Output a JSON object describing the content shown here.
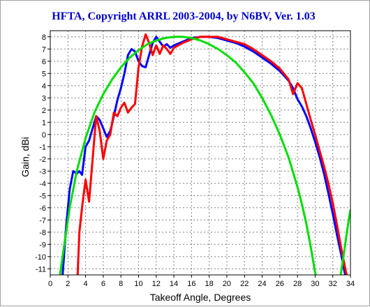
{
  "chart_data": {
    "type": "line",
    "title": "HFTA, Copyright ARRL 2003-2004, by N6BV, Ver. 1.03",
    "xlabel": "Takeoff Angle, Degrees",
    "ylabel": "Gain, dBi",
    "xlim": [
      0,
      34
    ],
    "ylim": [
      -11.5,
      8.5
    ],
    "grid": true,
    "colors": {
      "title": "#0000cc",
      "frame": "#000000",
      "grid": "#808080"
    },
    "x_ticks": [
      "0",
      "2",
      "4",
      "6",
      "8",
      "10",
      "12",
      "14",
      "16",
      "18",
      "20",
      "22",
      "24",
      "26",
      "28",
      "30",
      "32",
      "34"
    ],
    "y_ticks": [
      "8",
      "7",
      "6",
      "5",
      "4",
      "3",
      "2",
      "1",
      "0",
      "-1",
      "-2",
      "-3",
      "-4",
      "-5",
      "-6",
      "-7",
      "-8",
      "-9",
      "-10",
      "-11"
    ],
    "series": [
      {
        "color": "#0000ff",
        "x": [
          1.4,
          1.8,
          2.2,
          2.6,
          3.0,
          3.3,
          3.6,
          4.0,
          4.4,
          4.8,
          5.2,
          5.6,
          6.0,
          6.4,
          6.8,
          7.2,
          7.6,
          8.0,
          8.4,
          8.8,
          9.2,
          9.6,
          10.0,
          10.4,
          10.8,
          11.2,
          11.6,
          12.0,
          12.4,
          12.8,
          13.2,
          13.6,
          14.0,
          15.0,
          16.0,
          17.0,
          18.0,
          19.0,
          20.0,
          21.0,
          22.0,
          23.0,
          24.0,
          25.0,
          26.0,
          27.0,
          27.5,
          28.0,
          28.5,
          29.0,
          29.5,
          30.0,
          30.5,
          31.0,
          31.5,
          32.0,
          32.5,
          33.0,
          33.4,
          33.8
        ],
        "y": [
          -11.5,
          -7.5,
          -4.5,
          -3.0,
          -3.2,
          -3.0,
          -3.3,
          -1.0,
          -0.5,
          0.5,
          1.5,
          1.2,
          0.5,
          -0.2,
          0.3,
          1.5,
          2.8,
          3.8,
          5.0,
          6.5,
          7.0,
          6.8,
          6.0,
          5.6,
          5.5,
          6.5,
          7.5,
          8.0,
          7.6,
          7.2,
          7.4,
          7.1,
          7.3,
          7.6,
          7.9,
          8.0,
          8.0,
          7.9,
          7.7,
          7.5,
          7.2,
          6.8,
          6.3,
          5.8,
          5.2,
          4.4,
          3.8,
          2.9,
          2.3,
          1.5,
          0.5,
          -0.6,
          -1.8,
          -3.2,
          -4.8,
          -6.5,
          -8.3,
          -10.0,
          -11.5,
          -12.5
        ]
      },
      {
        "color": "#ff0000",
        "x": [
          3.1,
          3.3,
          3.6,
          4.0,
          4.4,
          4.8,
          5.2,
          5.6,
          6.0,
          6.4,
          6.8,
          7.2,
          7.6,
          8.0,
          8.4,
          8.8,
          9.2,
          9.6,
          10.0,
          10.4,
          10.8,
          11.2,
          11.6,
          12.0,
          12.4,
          12.8,
          13.2,
          13.6,
          14.0,
          15.0,
          16.0,
          17.0,
          18.0,
          19.0,
          20.0,
          21.0,
          22.0,
          23.0,
          24.0,
          25.0,
          26.0,
          27.0,
          27.5,
          28.0,
          28.5,
          29.0,
          29.5,
          30.0,
          30.5,
          31.0,
          31.5,
          32.0,
          32.5,
          33.0,
          33.5,
          34.0
        ],
        "y": [
          -11.5,
          -8.0,
          -6.0,
          -3.7,
          -5.5,
          -2.0,
          1.5,
          0.3,
          -2.0,
          -0.5,
          0.0,
          1.8,
          1.5,
          2.2,
          2.6,
          1.8,
          2.2,
          2.5,
          5.5,
          7.2,
          8.2,
          7.5,
          6.5,
          7.3,
          6.6,
          7.3,
          7.0,
          6.6,
          7.1,
          7.5,
          7.8,
          8.0,
          8.0,
          8.0,
          7.8,
          7.6,
          7.4,
          7.0,
          6.5,
          6.0,
          5.4,
          4.5,
          3.3,
          4.2,
          3.8,
          2.5,
          1.2,
          0.0,
          -1.3,
          -2.6,
          -4.0,
          -5.6,
          -7.5,
          -9.5,
          -11.3,
          -12.5
        ]
      },
      {
        "color": "#00dd00",
        "x": [
          1.1,
          1.6,
          2.2,
          3.0,
          4.0,
          5.0,
          6.0,
          7.0,
          8.0,
          9.0,
          10.0,
          11.0,
          12.0,
          13.0,
          14.0,
          15.0,
          16.0,
          17.0,
          18.0,
          19.0,
          20.0,
          21.0,
          22.0,
          23.0,
          24.0,
          25.0,
          26.0,
          27.0,
          28.0,
          28.5,
          29.0,
          29.5,
          30.0,
          30.5,
          32.9,
          33.2,
          33.5,
          33.8,
          34.0
        ],
        "y": [
          -11.5,
          -9.0,
          -6.0,
          -3.0,
          -0.3,
          1.8,
          3.3,
          4.5,
          5.5,
          6.3,
          6.9,
          7.4,
          7.7,
          7.9,
          8.0,
          8.0,
          7.9,
          7.7,
          7.4,
          7.0,
          6.5,
          5.9,
          5.1,
          4.2,
          3.0,
          1.6,
          0.0,
          -1.9,
          -4.3,
          -5.7,
          -7.3,
          -9.2,
          -11.3,
          -12.5,
          -11.5,
          -10.0,
          -8.5,
          -7.0,
          -6.2
        ]
      }
    ]
  }
}
